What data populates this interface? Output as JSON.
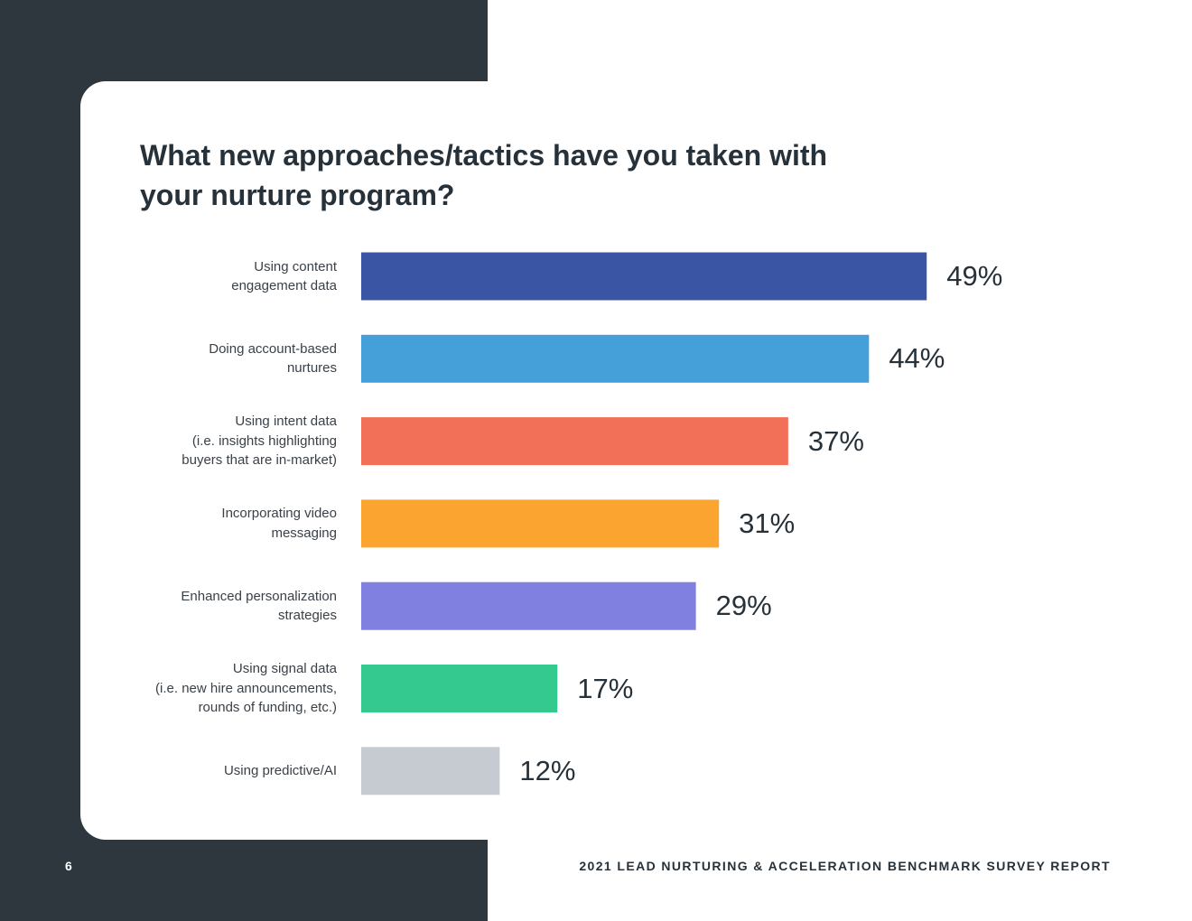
{
  "page": {
    "number": "6",
    "footer_title": "2021 LEAD NURTURING & ACCELERATION BENCHMARK SURVEY REPORT"
  },
  "chart_data": {
    "type": "bar",
    "orientation": "horizontal",
    "title": "What new approaches/tactics have you taken with your nurture program?",
    "categories": [
      "Using content\nengagement data",
      "Doing account-based\nnurtures",
      "Using intent data\n(i.e. insights highlighting\nbuyers that are in-market)",
      "Incorporating video\nmessaging",
      "Enhanced personalization\nstrategies",
      "Using signal data\n(i.e. new hire announcements,\nrounds of funding, etc.)",
      "Using predictive/AI"
    ],
    "values": [
      49,
      44,
      37,
      31,
      29,
      17,
      12
    ],
    "value_labels": [
      "49%",
      "44%",
      "37%",
      "31%",
      "29%",
      "17%",
      "12%"
    ],
    "colors": [
      "#3b55a5",
      "#459fd9",
      "#f27058",
      "#fca430",
      "#8080e0",
      "#34c98f",
      "#c6cbd2"
    ],
    "xlim": [
      0,
      100
    ],
    "grid": false,
    "legend": "none"
  }
}
